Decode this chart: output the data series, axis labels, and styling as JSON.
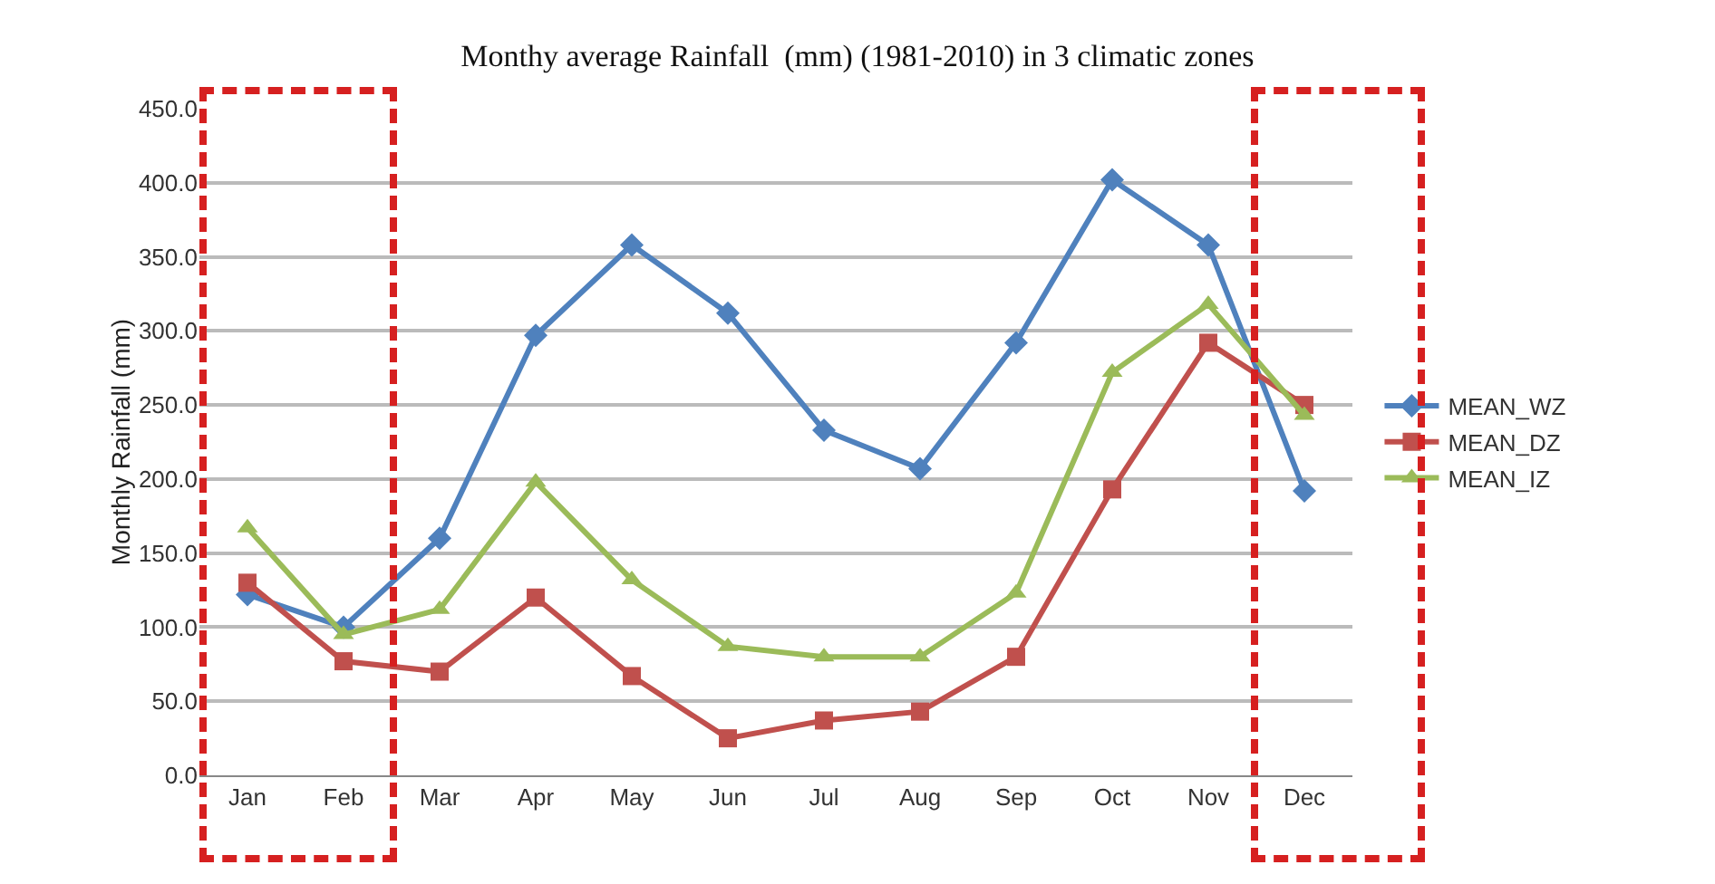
{
  "chart_data": {
    "type": "line",
    "title": "Monthy average Rainfall  (mm) (1981-2010) in 3 climatic zones",
    "ylabel": "Monthly Rainfall (mm)",
    "categories": [
      "Jan",
      "Feb",
      "Mar",
      "Apr",
      "May",
      "Jun",
      "Jul",
      "Aug",
      "Sep",
      "Oct",
      "Nov",
      "Dec"
    ],
    "series": [
      {
        "name": "MEAN_WZ",
        "color": "#4f81bd",
        "marker": "diamond",
        "values": [
          122,
          100,
          160,
          297,
          358,
          312,
          233,
          207,
          292,
          402,
          358,
          192
        ]
      },
      {
        "name": "MEAN_DZ",
        "color": "#c0504d",
        "marker": "square",
        "values": [
          130,
          77,
          70,
          120,
          67,
          25,
          37,
          43,
          80,
          193,
          292,
          250
        ]
      },
      {
        "name": "MEAN_IZ",
        "color": "#9bbb59",
        "marker": "triangle",
        "values": [
          167,
          95,
          112,
          198,
          132,
          87,
          80,
          80,
          123,
          272,
          318,
          243
        ]
      }
    ],
    "ylim": [
      0,
      450
    ],
    "yticks": [
      {
        "value": 0,
        "label": "0.0"
      },
      {
        "value": 50,
        "label": "50.0"
      },
      {
        "value": 100,
        "label": "100.0"
      },
      {
        "value": 150,
        "label": "150.0"
      },
      {
        "value": 200,
        "label": "200.0"
      },
      {
        "value": 250,
        "label": "250.0"
      },
      {
        "value": 300,
        "label": "300.0"
      },
      {
        "value": 350,
        "label": "350.0"
      },
      {
        "value": 400,
        "label": "400.0"
      },
      {
        "value": 450,
        "label": "450.0"
      }
    ],
    "grid": "y",
    "legend": "right",
    "line_style": "solid"
  }
}
